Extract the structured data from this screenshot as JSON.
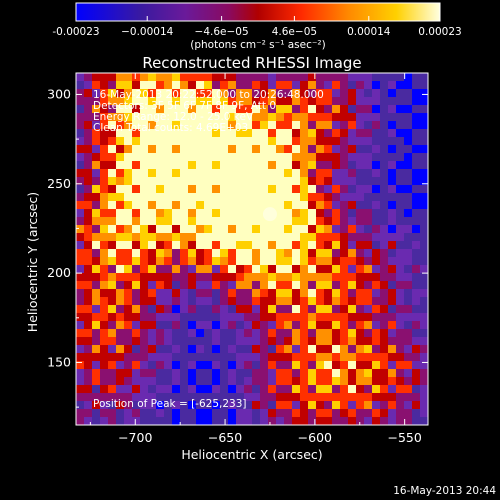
{
  "chart_data": {
    "type": "heatmap",
    "title": "Reconstructed RHESSI Image",
    "xlabel": "Heliocentric X (arcsec)",
    "ylabel": "Heliocentric Y (arcsec)",
    "xlim": [
      -733,
      -537
    ],
    "ylim": [
      115,
      312
    ],
    "x_ticks": [
      -700,
      -650,
      -600,
      -550
    ],
    "y_ticks": [
      150,
      200,
      250,
      300
    ],
    "colorbar": {
      "unit_label": "(photons cm⁻² s⁻¹ asec⁻²)",
      "range": [
        -0.00023,
        0.00023
      ],
      "ticks": [
        -0.00023,
        -0.00014,
        -4.6e-05,
        4.6e-05,
        0.00014,
        0.00023
      ],
      "tick_labels": [
        "-0.00023",
        "−0.00014",
        "−4.6e−05",
        "4.6e−05",
        "0.00014",
        "0.00023"
      ]
    },
    "annotations": [
      "16-May-2013 20:22:52.000 to 20:26:48.000",
      "Detectors: 3F 5F 6F 7F 8F 9F, Att 0",
      "Energy Range: 12.0 - 25.0 keV",
      "Clean     Total counts: 4.69E+03"
    ],
    "peak_label": "Position of Peak = [-625,233]",
    "peak_position": [
      -625,
      233
    ],
    "hotspots": [
      {
        "x": -625,
        "y": 233,
        "value": 0.00023
      },
      {
        "x": -690,
        "y": 255,
        "value": 0.00018
      },
      {
        "x": -665,
        "y": 285,
        "value": 0.00016
      },
      {
        "x": -700,
        "y": 300,
        "value": 0.00015
      },
      {
        "x": -710,
        "y": 220,
        "value": 0.00014
      },
      {
        "x": -640,
        "y": 265,
        "value": 0.00015
      },
      {
        "x": -600,
        "y": 290,
        "value": 0.00012
      },
      {
        "x": -655,
        "y": 225,
        "value": 0.00012
      },
      {
        "x": -715,
        "y": 175,
        "value": 0.0001
      },
      {
        "x": -615,
        "y": 190,
        "value": 0.0001
      },
      {
        "x": -575,
        "y": 200,
        "value": 9e-05
      },
      {
        "x": -560,
        "y": 140,
        "value": 9e-05
      },
      {
        "x": -590,
        "y": 150,
        "value": 8e-05
      },
      {
        "x": -610,
        "y": 130,
        "value": 8e-05
      },
      {
        "x": -720,
        "y": 135,
        "value": 7e-05
      }
    ],
    "colormap": [
      "#0000ff",
      "#4a2aa0",
      "#6a2ab0",
      "#8a1070",
      "#c00000",
      "#ff3000",
      "#ff9000",
      "#ffd000",
      "#ffffc0"
    ]
  },
  "footer_timestamp": "16-May-2013 20:44"
}
